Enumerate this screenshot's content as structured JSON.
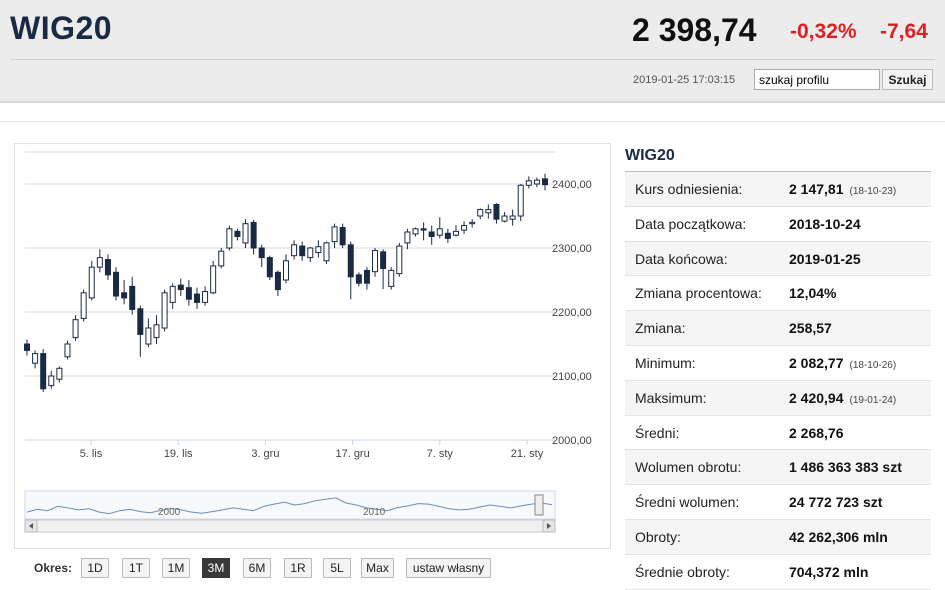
{
  "header": {
    "ticker": "WIG20",
    "price": "2 398,74",
    "change_pct": "-0,32%",
    "change_abs": "-7,64",
    "timestamp": "2019-01-25 17:03:15",
    "search": {
      "value": "szukaj profilu",
      "button_label": "Szukaj"
    },
    "change_color": "#e02020"
  },
  "chart_data": {
    "type": "candlestick",
    "ylim": [
      2000,
      2450
    ],
    "y_ticks": [
      "2000,00",
      "2100,00",
      "2200,00",
      "2300,00",
      "2400,00"
    ],
    "x_ticks": [
      "5. lis",
      "19. lis",
      "3. gru",
      "17. gru",
      "7. sty",
      "21. sty"
    ],
    "navigator_labels": [
      "2000",
      "2010"
    ],
    "colors": {
      "up": "#ffffff",
      "down": "#1a2a45",
      "outline": "#1a2a45",
      "navigator_line": "#6b8fb8"
    },
    "candles": [
      [
        2150,
        2140,
        2157,
        2132
      ],
      [
        2120,
        2135,
        2140,
        2112
      ],
      [
        2135,
        2080,
        2142,
        2075
      ],
      [
        2085,
        2100,
        2108,
        2080
      ],
      [
        2095,
        2112,
        2115,
        2090
      ],
      [
        2130,
        2150,
        2155,
        2126
      ],
      [
        2160,
        2188,
        2195,
        2155
      ],
      [
        2190,
        2230,
        2235,
        2185
      ],
      [
        2222,
        2270,
        2280,
        2218
      ],
      [
        2270,
        2285,
        2298,
        2262
      ],
      [
        2282,
        2258,
        2290,
        2250
      ],
      [
        2262,
        2225,
        2270,
        2218
      ],
      [
        2230,
        2222,
        2250,
        2212
      ],
      [
        2240,
        2204,
        2255,
        2196
      ],
      [
        2205,
        2165,
        2210,
        2130
      ],
      [
        2150,
        2175,
        2190,
        2145
      ],
      [
        2160,
        2180,
        2195,
        2150
      ],
      [
        2175,
        2230,
        2235,
        2170
      ],
      [
        2215,
        2240,
        2245,
        2205
      ],
      [
        2242,
        2235,
        2252,
        2225
      ],
      [
        2238,
        2220,
        2250,
        2210
      ],
      [
        2228,
        2215,
        2238,
        2205
      ],
      [
        2215,
        2232,
        2240,
        2210
      ],
      [
        2230,
        2272,
        2280,
        2228
      ],
      [
        2272,
        2295,
        2300,
        2268
      ],
      [
        2300,
        2330,
        2335,
        2296
      ],
      [
        2326,
        2318,
        2330,
        2312
      ],
      [
        2308,
        2338,
        2345,
        2300
      ],
      [
        2340,
        2300,
        2344,
        2290
      ],
      [
        2300,
        2285,
        2305,
        2270
      ],
      [
        2285,
        2255,
        2288,
        2250
      ],
      [
        2262,
        2235,
        2265,
        2225
      ],
      [
        2250,
        2280,
        2290,
        2245
      ],
      [
        2288,
        2305,
        2312,
        2282
      ],
      [
        2303,
        2288,
        2310,
        2280
      ],
      [
        2285,
        2300,
        2302,
        2278
      ],
      [
        2293,
        2302,
        2312,
        2285
      ],
      [
        2280,
        2308,
        2310,
        2275
      ],
      [
        2310,
        2333,
        2338,
        2300
      ],
      [
        2332,
        2305,
        2338,
        2300
      ],
      [
        2305,
        2255,
        2310,
        2220
      ],
      [
        2258,
        2245,
        2262,
        2240
      ],
      [
        2265,
        2245,
        2270,
        2235
      ],
      [
        2263,
        2296,
        2300,
        2255
      ],
      [
        2294,
        2268,
        2298,
        2236
      ],
      [
        2240,
        2265,
        2270,
        2235
      ],
      [
        2260,
        2303,
        2308,
        2255
      ],
      [
        2308,
        2325,
        2330,
        2298
      ],
      [
        2322,
        2330,
        2332,
        2318
      ],
      [
        2330,
        2328,
        2340,
        2312
      ],
      [
        2325,
        2318,
        2335,
        2305
      ],
      [
        2320,
        2330,
        2348,
        2315
      ],
      [
        2323,
        2315,
        2330,
        2308
      ],
      [
        2320,
        2326,
        2336,
        2318
      ],
      [
        2328,
        2335,
        2342,
        2322
      ],
      [
        2338,
        2340,
        2345,
        2332
      ],
      [
        2350,
        2360,
        2362,
        2345
      ],
      [
        2355,
        2360,
        2368,
        2346
      ],
      [
        2368,
        2345,
        2370,
        2338
      ],
      [
        2342,
        2350,
        2356,
        2340
      ],
      [
        2345,
        2350,
        2360,
        2335
      ],
      [
        2350,
        2398,
        2400,
        2342
      ],
      [
        2398,
        2405,
        2412,
        2393
      ],
      [
        2400,
        2406,
        2410,
        2395
      ],
      [
        2408,
        2399,
        2416,
        2390
      ]
    ]
  },
  "period_bar": {
    "label": "Okres:",
    "buttons": [
      "1D",
      "1T",
      "1M",
      "3M",
      "6M",
      "1R",
      "5L",
      "Max",
      "ustaw własny"
    ],
    "active": "3M"
  },
  "info": {
    "title": "WIG20",
    "rows": [
      {
        "label": "Kurs odniesienia:",
        "value": "2 147,81",
        "note": "(18-10-23)"
      },
      {
        "label": "Data początkowa:",
        "value": "2018-10-24",
        "note": ""
      },
      {
        "label": "Data końcowa:",
        "value": "2019-01-25",
        "note": ""
      },
      {
        "label": "Zmiana procentowa:",
        "value": "12,04%",
        "note": ""
      },
      {
        "label": "Zmiana:",
        "value": "258,57",
        "note": ""
      },
      {
        "label": "Minimum:",
        "value": "2 082,77",
        "note": "(18-10-26)"
      },
      {
        "label": "Maksimum:",
        "value": "2 420,94",
        "note": "(19-01-24)"
      },
      {
        "label": "Średni:",
        "value": "2 268,76",
        "note": ""
      },
      {
        "label": "Wolumen obrotu:",
        "value": "1 486 363 383 szt",
        "note": ""
      },
      {
        "label": "Średni wolumen:",
        "value": "24 772 723 szt",
        "note": ""
      },
      {
        "label": "Obroty:",
        "value": "42 262,306 mln",
        "note": ""
      },
      {
        "label": "Średnie obroty:",
        "value": "704,372 mln",
        "note": ""
      }
    ]
  }
}
